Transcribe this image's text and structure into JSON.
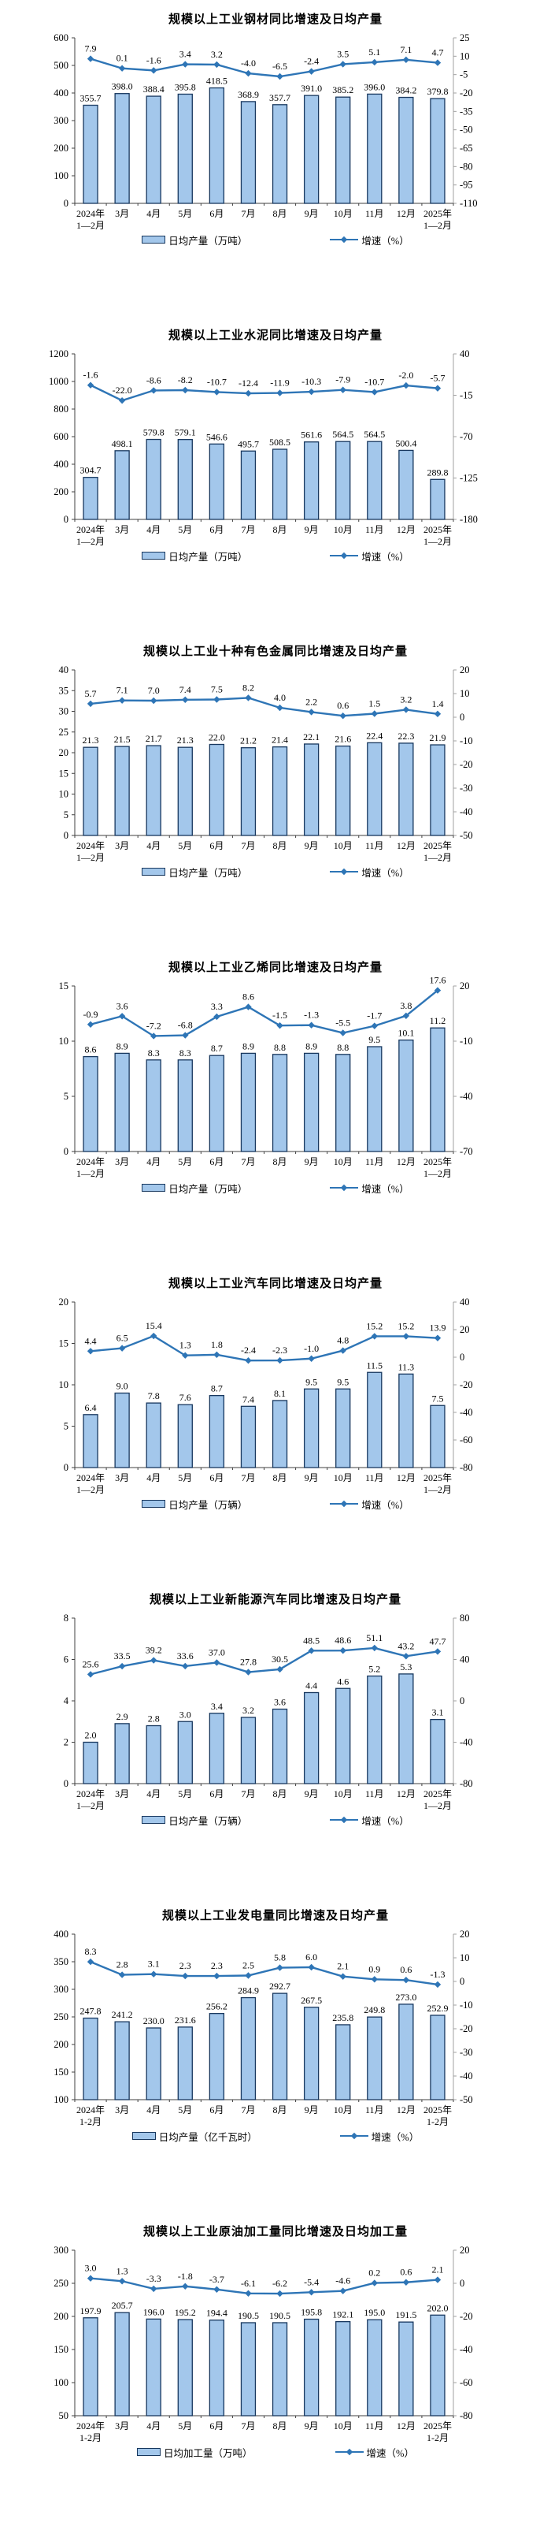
{
  "colors": {
    "bar_fill": "#A3C7EB",
    "bar_stroke": "#17375E",
    "line": "#2E75B6",
    "axis": "#404040",
    "right_axis": "#A0A0A0"
  },
  "chart_data": [
    {
      "type": "bar+line",
      "title": "规模以上工业钢材同比增速及日均产量",
      "legend": {
        "bar": "日均产量（万吨）",
        "line": "增速（%）"
      },
      "categories": [
        "2024年\n1—2月",
        "3月",
        "4月",
        "5月",
        "6月",
        "7月",
        "8月",
        "9月",
        "10月",
        "11月",
        "12月",
        "2025年\n1—2月"
      ],
      "bars": [
        355.7,
        398.0,
        388.4,
        395.8,
        418.5,
        368.9,
        357.7,
        391.0,
        385.2,
        396.0,
        384.2,
        379.8
      ],
      "line": [
        7.9,
        0.1,
        -1.6,
        3.4,
        3.2,
        -4.0,
        -6.5,
        -2.4,
        3.5,
        5.1,
        7.1,
        4.7
      ],
      "left_axis": {
        "min": 0,
        "max": 600,
        "ticks": [
          600,
          500,
          400,
          300,
          200,
          100,
          0
        ]
      },
      "right_axis": {
        "min": -110,
        "max": 25,
        "ticks": [
          25,
          10,
          -5,
          -20,
          -35,
          -50,
          -65,
          -80,
          -95,
          -110
        ]
      }
    },
    {
      "type": "bar+line",
      "title": "规模以上工业水泥同比增速及日均产量",
      "legend": {
        "bar": "日均产量（万吨）",
        "line": "增速（%）"
      },
      "categories": [
        "2024年\n1—2月",
        "3月",
        "4月",
        "5月",
        "6月",
        "7月",
        "8月",
        "9月",
        "10月",
        "11月",
        "12月",
        "2025年\n1—2月"
      ],
      "bars": [
        304.7,
        498.1,
        579.8,
        579.1,
        546.6,
        495.7,
        508.5,
        561.6,
        564.5,
        564.5,
        500.4,
        289.8
      ],
      "line": [
        -1.6,
        -22.0,
        -8.6,
        -8.2,
        -10.7,
        -12.4,
        -11.9,
        -10.3,
        -7.9,
        -10.7,
        -2.0,
        -5.7
      ],
      "left_axis": {
        "min": 0,
        "max": 1200,
        "ticks": [
          1200,
          1000,
          800,
          600,
          400,
          200,
          0
        ]
      },
      "right_axis": {
        "min": -180,
        "max": 40,
        "ticks": [
          40,
          -15,
          -70,
          -125,
          -180
        ]
      }
    },
    {
      "type": "bar+line",
      "title": "规模以上工业十种有色金属同比增速及日均产量",
      "legend": {
        "bar": "日均产量（万吨）",
        "line": "增速（%）"
      },
      "categories": [
        "2024年\n1—2月",
        "3月",
        "4月",
        "5月",
        "6月",
        "7月",
        "8月",
        "9月",
        "10月",
        "11月",
        "12月",
        "2025年\n1—2月"
      ],
      "bars": [
        21.3,
        21.5,
        21.7,
        21.3,
        22.0,
        21.2,
        21.4,
        22.1,
        21.6,
        22.4,
        22.3,
        21.9
      ],
      "line": [
        5.7,
        7.1,
        7.0,
        7.4,
        7.5,
        8.2,
        4.0,
        2.2,
        0.6,
        1.5,
        3.2,
        1.4
      ],
      "left_axis": {
        "min": 0,
        "max": 40,
        "ticks": [
          40,
          35,
          30,
          25,
          20,
          15,
          10,
          5,
          0
        ]
      },
      "right_axis": {
        "min": -50,
        "max": 20,
        "ticks": [
          20,
          10,
          0,
          -10,
          -20,
          -30,
          -40,
          -50
        ]
      }
    },
    {
      "type": "bar+line",
      "title": "规模以上工业乙烯同比增速及日均产量",
      "legend": {
        "bar": "日均产量（万吨）",
        "line": "增速（%）"
      },
      "categories": [
        "2024年\n1—2月",
        "3月",
        "4月",
        "5月",
        "6月",
        "7月",
        "8月",
        "9月",
        "10月",
        "11月",
        "12月",
        "2025年\n1—2月"
      ],
      "bars": [
        8.6,
        8.9,
        8.3,
        8.3,
        8.7,
        8.9,
        8.8,
        8.9,
        8.8,
        9.5,
        10.1,
        11.2
      ],
      "line": [
        -0.9,
        3.6,
        -7.2,
        -6.8,
        3.3,
        8.6,
        -1.5,
        -1.3,
        -5.5,
        -1.7,
        3.8,
        17.6
      ],
      "left_axis": {
        "min": 0,
        "max": 15,
        "ticks": [
          15,
          10,
          5,
          0
        ]
      },
      "right_axis": {
        "min": -70,
        "max": 20,
        "ticks": [
          20,
          -10,
          -40,
          -70
        ]
      }
    },
    {
      "type": "bar+line",
      "title": "规模以上工业汽车同比增速及日均产量",
      "legend": {
        "bar": "日均产量（万辆）",
        "line": "增速（%）"
      },
      "categories": [
        "2024年\n1—2月",
        "3月",
        "4月",
        "5月",
        "6月",
        "7月",
        "8月",
        "9月",
        "10月",
        "11月",
        "12月",
        "2025年\n1—2月"
      ],
      "bars": [
        6.4,
        9.0,
        7.8,
        7.6,
        8.7,
        7.4,
        8.1,
        9.5,
        9.5,
        11.5,
        11.3,
        7.5
      ],
      "line": [
        4.4,
        6.5,
        15.4,
        1.3,
        1.8,
        -2.4,
        -2.3,
        -1.0,
        4.8,
        15.2,
        15.2,
        13.9
      ],
      "left_axis": {
        "min": 0,
        "max": 20,
        "ticks": [
          20,
          15,
          10,
          5,
          0
        ]
      },
      "right_axis": {
        "min": -80,
        "max": 40,
        "ticks": [
          40,
          20,
          0,
          -20,
          -40,
          -60,
          -80
        ]
      }
    },
    {
      "type": "bar+line",
      "title": "规模以上工业新能源汽车同比增速及日均产量",
      "legend": {
        "bar": "日均产量（万辆）",
        "line": "增速（%）"
      },
      "categories": [
        "2024年\n1—2月",
        "3月",
        "4月",
        "5月",
        "6月",
        "7月",
        "8月",
        "9月",
        "10月",
        "11月",
        "12月",
        "2025年\n1—2月"
      ],
      "bars": [
        2.0,
        2.9,
        2.8,
        3.0,
        3.4,
        3.2,
        3.6,
        4.4,
        4.6,
        5.2,
        5.3,
        3.1
      ],
      "line": [
        25.6,
        33.5,
        39.2,
        33.6,
        37.0,
        27.8,
        30.5,
        48.5,
        48.6,
        51.1,
        43.2,
        47.7
      ],
      "left_axis": {
        "min": 0,
        "max": 8,
        "ticks": [
          8,
          6,
          4,
          2,
          0
        ]
      },
      "right_axis": {
        "min": -80,
        "max": 80,
        "ticks": [
          80,
          40,
          0,
          -40,
          -80
        ]
      }
    },
    {
      "type": "bar+line",
      "title": "规模以上工业发电量同比增速及日均产量",
      "legend": {
        "bar": "日均产量（亿千瓦时）",
        "line": "增速（%）"
      },
      "categories": [
        "2024年\n1-2月",
        "3月",
        "4月",
        "5月",
        "6月",
        "7月",
        "8月",
        "9月",
        "10月",
        "11月",
        "12月",
        "2025年\n1-2月"
      ],
      "bars": [
        247.8,
        241.2,
        230.0,
        231.6,
        256.2,
        284.9,
        292.7,
        267.5,
        235.8,
        249.8,
        273.0,
        252.9
      ],
      "line": [
        8.3,
        2.8,
        3.1,
        2.3,
        2.3,
        2.5,
        5.8,
        6.0,
        2.1,
        0.9,
        0.6,
        -1.3
      ],
      "left_axis": {
        "min": 100,
        "max": 400,
        "ticks": [
          400,
          350,
          300,
          250,
          200,
          150,
          100
        ]
      },
      "right_axis": {
        "min": -50,
        "max": 20,
        "ticks": [
          20,
          10,
          0,
          -10,
          -20,
          -30,
          -40,
          -50
        ]
      }
    },
    {
      "type": "bar+line",
      "title": "规模以上工业原油加工量同比增速及日均加工量",
      "legend": {
        "bar": "日均加工量（万吨）",
        "line": "增速（%）"
      },
      "categories": [
        "2024年\n1-2月",
        "3月",
        "4月",
        "5月",
        "6月",
        "7月",
        "8月",
        "9月",
        "10月",
        "11月",
        "12月",
        "2025年\n1-2月"
      ],
      "bars": [
        197.9,
        205.7,
        196.0,
        195.2,
        194.4,
        190.5,
        190.5,
        195.8,
        192.1,
        195.0,
        191.5,
        202.0
      ],
      "line": [
        3.0,
        1.3,
        -3.3,
        -1.8,
        -3.7,
        -6.1,
        -6.2,
        -5.4,
        -4.6,
        0.2,
        0.6,
        2.1
      ],
      "left_axis": {
        "min": 50,
        "max": 300,
        "ticks": [
          300,
          250,
          200,
          150,
          100,
          50
        ]
      },
      "right_axis": {
        "min": -80,
        "max": 20,
        "ticks": [
          20,
          0,
          -20,
          -40,
          -60,
          -80
        ]
      }
    }
  ]
}
